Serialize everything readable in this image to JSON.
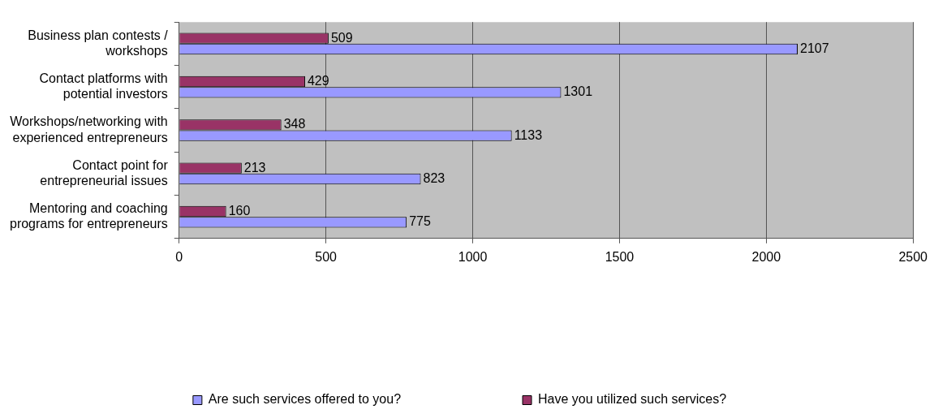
{
  "chart_data": {
    "type": "bar",
    "orientation": "horizontal",
    "categories": [
      "Business plan contests / workshops",
      "Contact platforms with potential investors",
      "Workshops/networking with experienced entrepreneurs",
      "Contact point for entrepreneurial issues",
      "Mentoring and coaching programs for entrepreneurs"
    ],
    "series": [
      {
        "name": "Are such services offered to you?",
        "color": "#9999ff",
        "values": [
          2107,
          1301,
          1133,
          823,
          775
        ]
      },
      {
        "name": "Have you utilized such services?",
        "color": "#993366",
        "values": [
          509,
          429,
          348,
          213,
          160
        ]
      }
    ],
    "xlim": [
      0,
      2500
    ],
    "xticks": [
      0,
      500,
      1000,
      1500,
      2000,
      2500
    ],
    "grid": "x",
    "legend": "bottom",
    "data_labels": true
  }
}
